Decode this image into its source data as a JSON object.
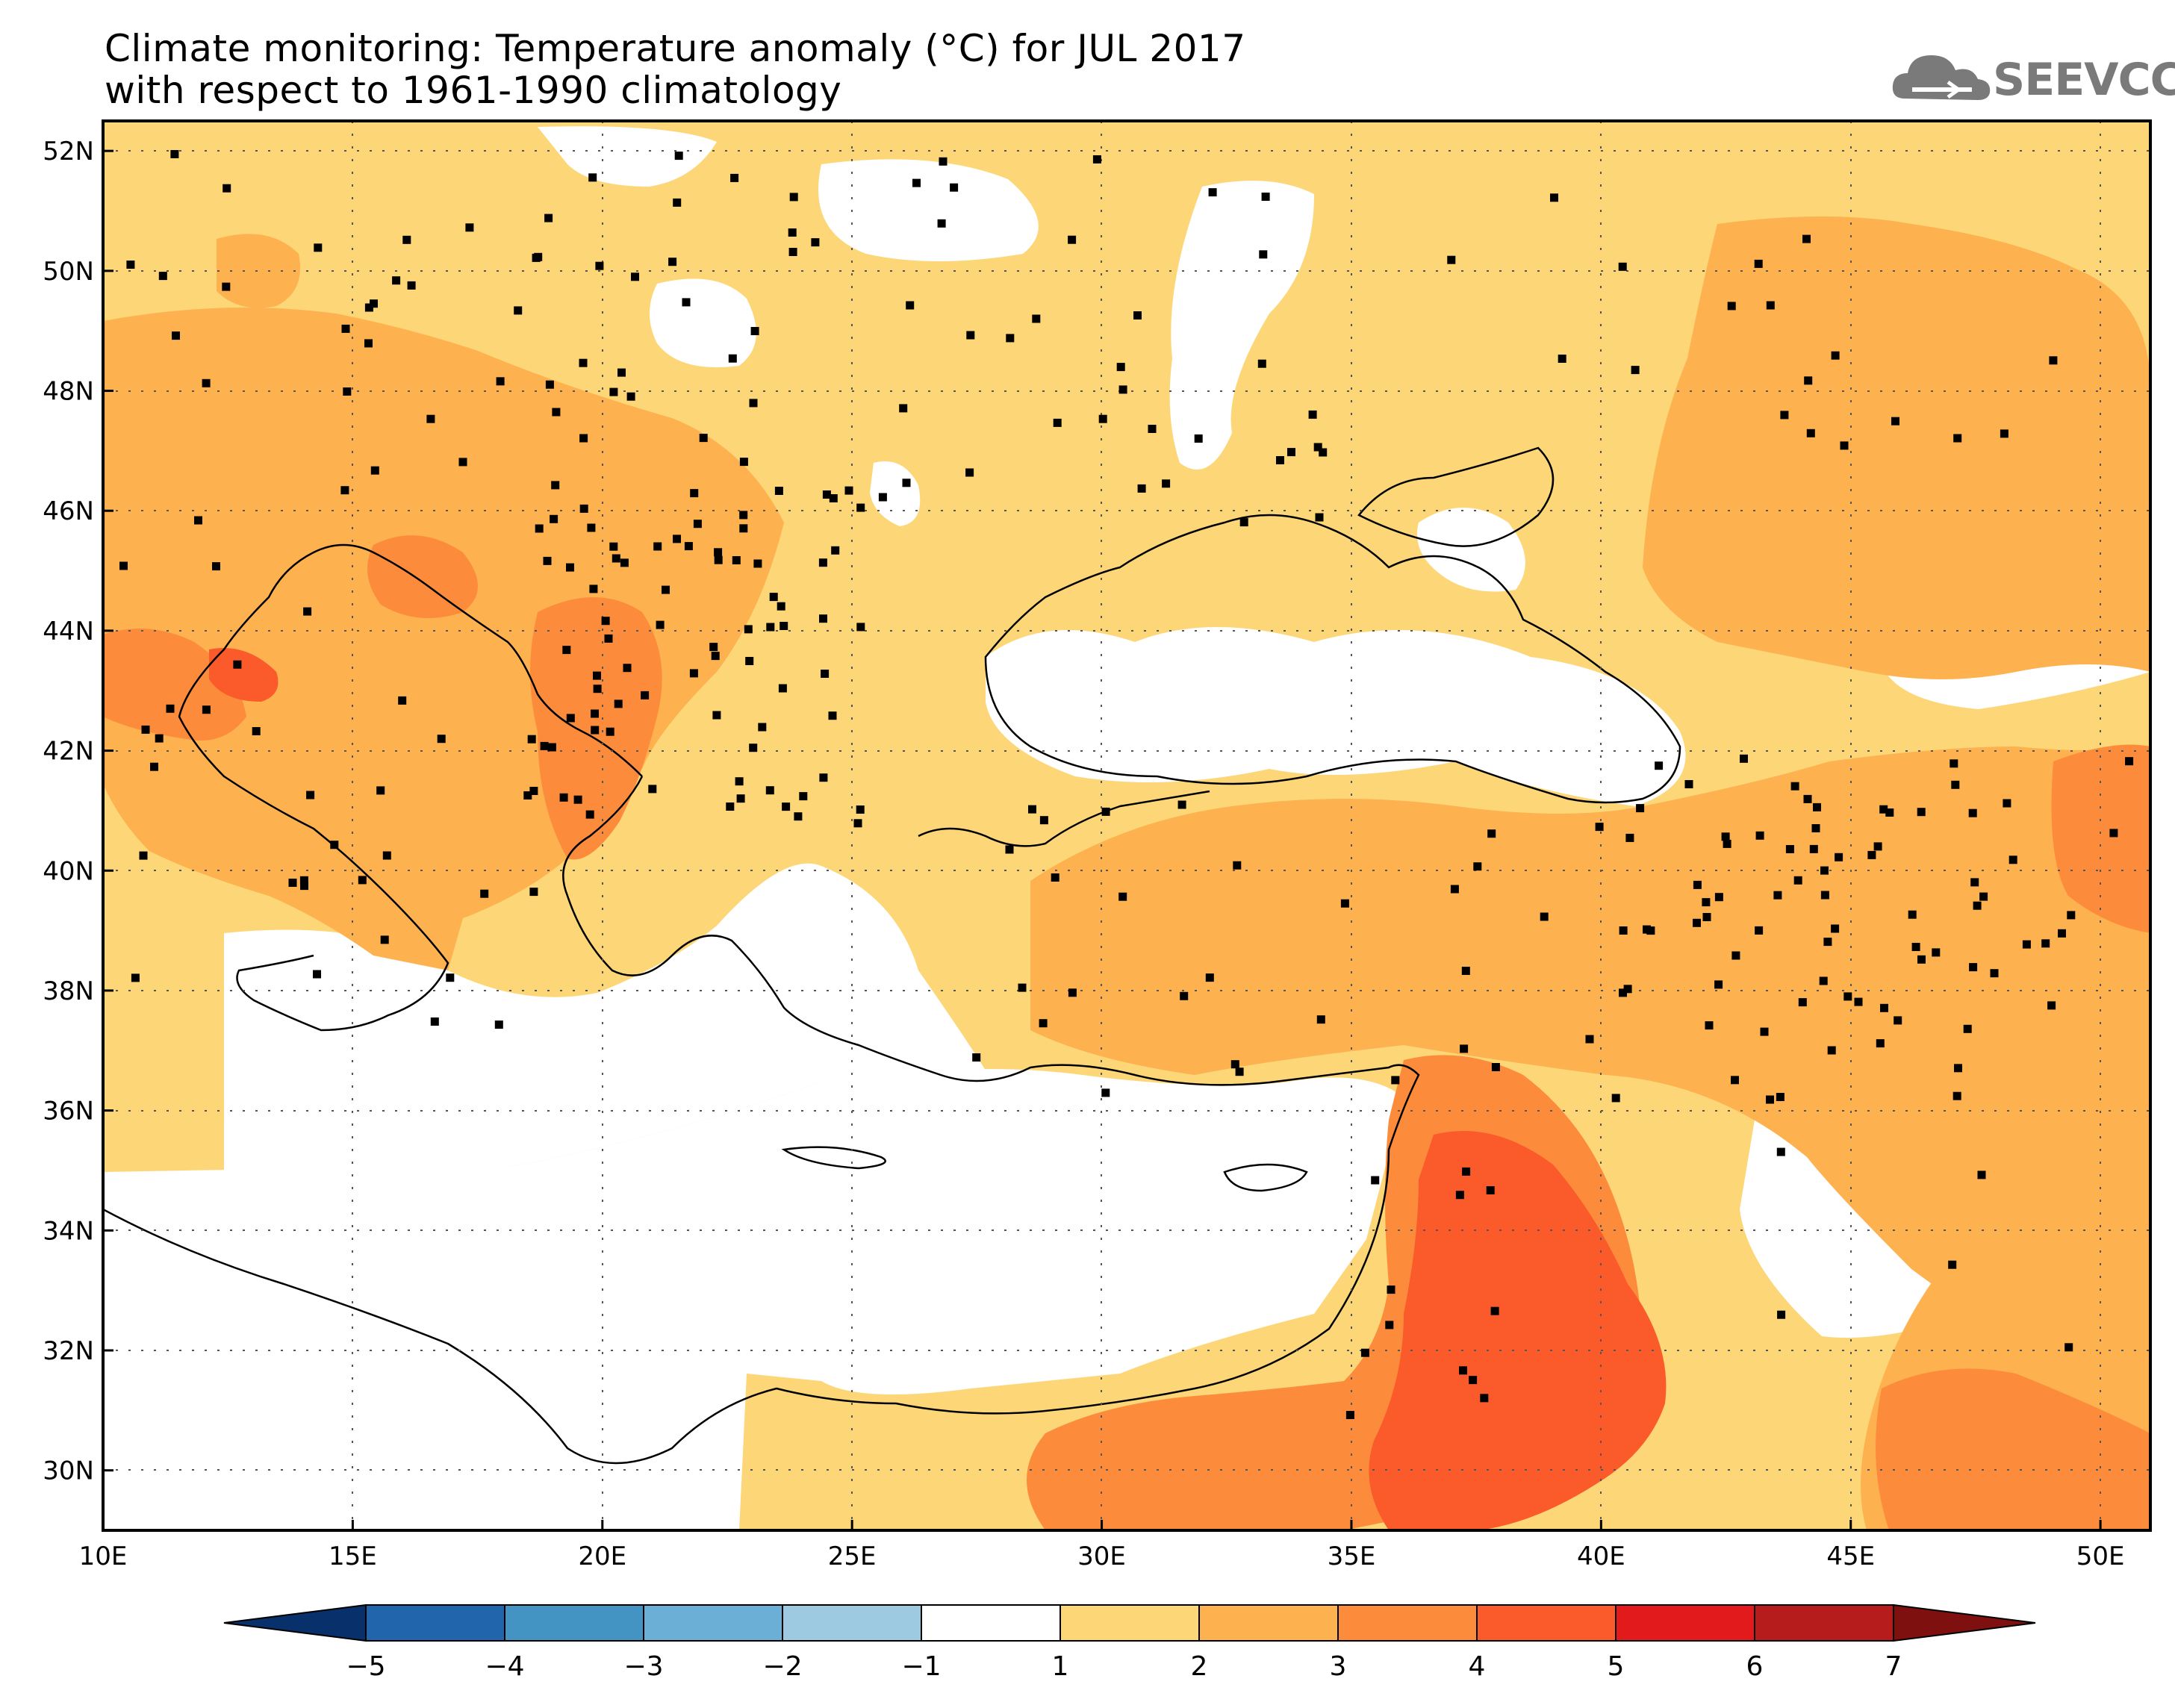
{
  "title": {
    "line1": "Climate monitoring: Temperature anomaly (°C) for JUL 2017",
    "line2": "with respect to 1961-1990 climatology"
  },
  "logo": {
    "text": "SEEVCCC",
    "icon": "cloud-icon"
  },
  "map": {
    "lon_range": [
      10,
      51
    ],
    "lat_range": [
      29,
      52.5
    ],
    "lon_ticks": [
      "10E",
      "15E",
      "20E",
      "25E",
      "30E",
      "35E",
      "40E",
      "45E",
      "50E"
    ],
    "lat_ticks": [
      "52N",
      "50N",
      "48N",
      "46N",
      "44N",
      "42N",
      "40N",
      "38N",
      "36N",
      "34N",
      "32N",
      "30N"
    ],
    "grid": true
  },
  "colorbar": {
    "labels": [
      "-5",
      "-4",
      "-3",
      "-2",
      "-1",
      "1",
      "2",
      "3",
      "4",
      "5",
      "6",
      "7"
    ],
    "colors": [
      "#08306b",
      "#2166ac",
      "#4393c3",
      "#6baed6",
      "#9ecae1",
      "#ffffff",
      "#fdd677",
      "#fdb14f",
      "#fc8c3b",
      "#fb5a2a",
      "#e31a1c",
      "#b71c1c",
      "#7f1010"
    ]
  }
}
